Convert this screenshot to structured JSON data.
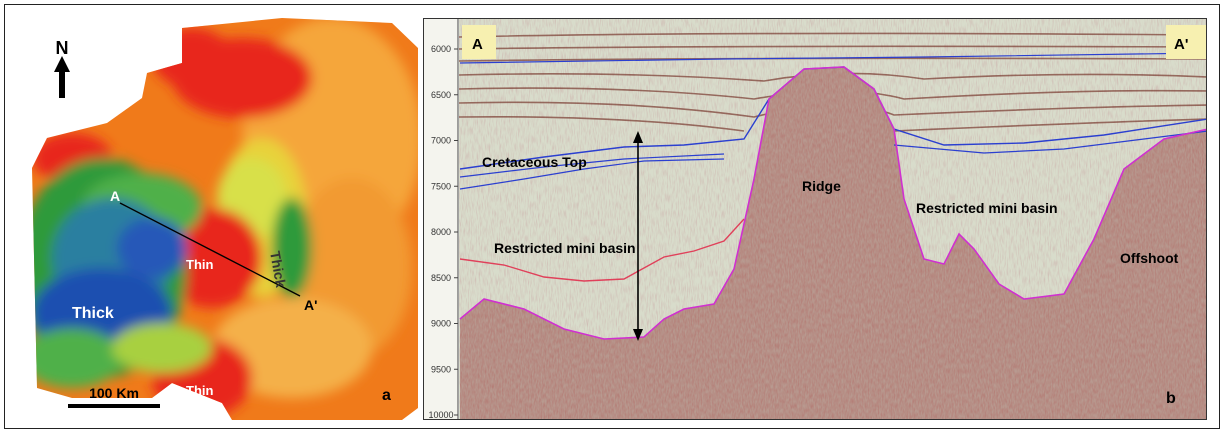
{
  "panel_a": {
    "north_label": "N",
    "point_a": "A",
    "point_a_prime": "A'",
    "labels": [
      "Thick",
      "Thick",
      "Thin",
      "Thin"
    ],
    "scale_bar": "100 Km",
    "panel_letter": "a"
  },
  "panel_b": {
    "corner_left": "A",
    "corner_right": "A'",
    "depth_ticks": [
      "6000",
      "6500",
      "7000",
      "7500",
      "8000",
      "8500",
      "9000",
      "9500",
      "10000"
    ],
    "labels": {
      "cretaceous_top": "Cretaceous Top",
      "ridge": "Ridge",
      "restricted_basin_1": "Restricted mini basin",
      "restricted_basin_2": "Restricted mini basin",
      "offshoot": "Offshoot"
    },
    "panel_letter": "b"
  },
  "colors": {
    "thick": "#1f4fb0",
    "green": "#2f9a3a",
    "thin": "#e8261c",
    "orange": "#f07a1a",
    "yellow": "#e8d23a",
    "horizon_blue": "#2b3fd0",
    "horizon_red": "#e0405a",
    "horizon_magenta": "#d030d0"
  }
}
